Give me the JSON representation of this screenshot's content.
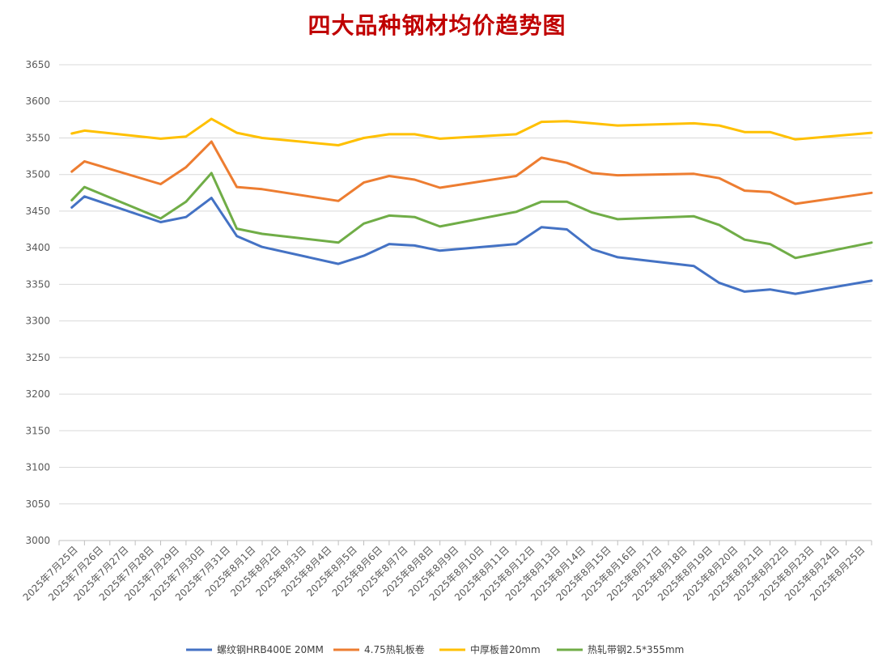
{
  "chart_data": {
    "type": "line",
    "title": "四大品种钢材均价趋势图",
    "xlabel": "",
    "ylabel": "",
    "ylim": [
      3000,
      3650
    ],
    "yticks": [
      3000,
      3050,
      3100,
      3150,
      3200,
      3250,
      3300,
      3350,
      3400,
      3450,
      3500,
      3550,
      3600,
      3650
    ],
    "grid": true,
    "legend": "bottom",
    "categories": [
      "2025年7月25日",
      "2025年7月26日",
      "2025年7月27日",
      "2025年7月28日",
      "2025年7月29日",
      "2025年7月30日",
      "2025年7月31日",
      "2025年8月1日",
      "2025年8月2日",
      "2025年8月3日",
      "2025年8月4日",
      "2025年8月5日",
      "2025年8月6日",
      "2025年8月7日",
      "2025年8月8日",
      "2025年8月9日",
      "2025年8月10日",
      "2025年8月11日",
      "2025年8月12日",
      "2025年8月13日",
      "2025年8月14日",
      "2025年8月15日",
      "2025年8月16日",
      "2025年8月17日",
      "2025年8月18日",
      "2025年8月19日",
      "2025年8月20日",
      "2025年8月21日",
      "2025年8月22日",
      "2025年8月23日",
      "2025年8月24日",
      "2025年8月25日"
    ],
    "series": [
      {
        "name": "螺纹钢HRB400E 20MM",
        "color": "#4472c4",
        "points": [
          [
            0,
            3455
          ],
          [
            0.5,
            3470
          ],
          [
            3.5,
            3435
          ],
          [
            4.5,
            3442
          ],
          [
            5.5,
            3468
          ],
          [
            6.5,
            3416
          ],
          [
            7.5,
            3401
          ],
          [
            10.5,
            3378
          ],
          [
            11.5,
            3389
          ],
          [
            12.5,
            3405
          ],
          [
            13.5,
            3403
          ],
          [
            14.5,
            3396
          ],
          [
            17.5,
            3405
          ],
          [
            18.5,
            3428
          ],
          [
            19.5,
            3425
          ],
          [
            20.5,
            3398
          ],
          [
            21.5,
            3387
          ],
          [
            24.5,
            3375
          ],
          [
            25.5,
            3352
          ],
          [
            26.5,
            3340
          ],
          [
            27.5,
            3343
          ],
          [
            28.5,
            3337
          ],
          [
            31.5,
            3355
          ]
        ]
      },
      {
        "name": "4.75热轧板卷",
        "color": "#ed7d31",
        "points": [
          [
            0,
            3504
          ],
          [
            0.5,
            3518
          ],
          [
            3.5,
            3487
          ],
          [
            4.5,
            3510
          ],
          [
            5.5,
            3545
          ],
          [
            6.5,
            3483
          ],
          [
            7.5,
            3480
          ],
          [
            10.5,
            3464
          ],
          [
            11.5,
            3489
          ],
          [
            12.5,
            3498
          ],
          [
            13.5,
            3493
          ],
          [
            14.5,
            3482
          ],
          [
            17.5,
            3498
          ],
          [
            18.5,
            3523
          ],
          [
            19.5,
            3516
          ],
          [
            20.5,
            3502
          ],
          [
            21.5,
            3499
          ],
          [
            24.5,
            3501
          ],
          [
            25.5,
            3495
          ],
          [
            26.5,
            3478
          ],
          [
            27.5,
            3476
          ],
          [
            28.5,
            3460
          ],
          [
            31.5,
            3475
          ]
        ]
      },
      {
        "name": "中厚板普20mm",
        "color": "#ffc000",
        "points": [
          [
            0,
            3556
          ],
          [
            0.5,
            3560
          ],
          [
            3.5,
            3549
          ],
          [
            4.5,
            3552
          ],
          [
            5.5,
            3576
          ],
          [
            6.5,
            3557
          ],
          [
            7.5,
            3550
          ],
          [
            10.5,
            3540
          ],
          [
            11.5,
            3550
          ],
          [
            12.5,
            3555
          ],
          [
            13.5,
            3555
          ],
          [
            14.5,
            3549
          ],
          [
            17.5,
            3555
          ],
          [
            18.5,
            3572
          ],
          [
            19.5,
            3573
          ],
          [
            20.5,
            3570
          ],
          [
            21.5,
            3567
          ],
          [
            24.5,
            3570
          ],
          [
            25.5,
            3567
          ],
          [
            26.5,
            3558
          ],
          [
            27.5,
            3558
          ],
          [
            28.5,
            3548
          ],
          [
            31.5,
            3557
          ]
        ]
      },
      {
        "name": "热轧带钢2.5*355mm",
        "color": "#70ad47",
        "points": [
          [
            0,
            3465
          ],
          [
            0.5,
            3483
          ],
          [
            3.5,
            3440
          ],
          [
            4.5,
            3463
          ],
          [
            5.5,
            3502
          ],
          [
            6.5,
            3426
          ],
          [
            7.5,
            3419
          ],
          [
            10.5,
            3407
          ],
          [
            11.5,
            3433
          ],
          [
            12.5,
            3444
          ],
          [
            13.5,
            3442
          ],
          [
            14.5,
            3429
          ],
          [
            17.5,
            3449
          ],
          [
            18.5,
            3463
          ],
          [
            19.5,
            3463
          ],
          [
            20.5,
            3448
          ],
          [
            21.5,
            3439
          ],
          [
            24.5,
            3443
          ],
          [
            25.5,
            3431
          ],
          [
            26.5,
            3411
          ],
          [
            27.5,
            3405
          ],
          [
            28.5,
            3386
          ],
          [
            31.5,
            3407
          ]
        ]
      }
    ]
  }
}
